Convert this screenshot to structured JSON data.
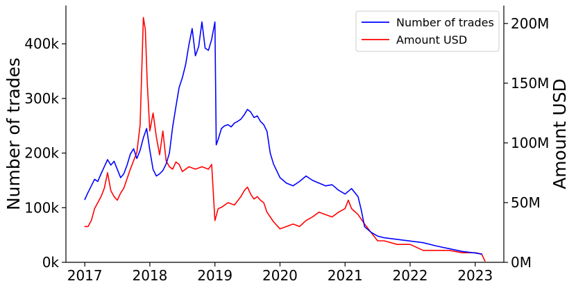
{
  "chart_data": {
    "type": "line",
    "ylabel_left": "Number of trades",
    "ylabel_right": "Amount USD",
    "xlim": [
      2016.71,
      2023.44
    ],
    "ylim_left": [
      0,
      470000
    ],
    "ylim_right": [
      0,
      215000000
    ],
    "x_ticks": [
      2017,
      2018,
      2019,
      2020,
      2021,
      2022,
      2023
    ],
    "x_tick_labels": [
      "2017",
      "2018",
      "2019",
      "2020",
      "2021",
      "2022",
      "2023"
    ],
    "y_left_ticks": [
      0,
      100000,
      200000,
      300000,
      400000
    ],
    "y_left_tick_labels": [
      "0k",
      "100k",
      "200k",
      "300k",
      "400k"
    ],
    "y_right_ticks": [
      0,
      50000000,
      100000000,
      150000000,
      200000000
    ],
    "y_right_tick_labels": [
      "0M",
      "50M",
      "100M",
      "150M",
      "200M"
    ],
    "legend_position": "top-right",
    "grid": false,
    "series": [
      {
        "name": "Number of trades",
        "axis": "left",
        "color": "#0000ff",
        "x": [
          2017.0,
          2017.05,
          2017.1,
          2017.15,
          2017.2,
          2017.25,
          2017.3,
          2017.35,
          2017.4,
          2017.45,
          2017.5,
          2017.55,
          2017.6,
          2017.65,
          2017.7,
          2017.75,
          2017.8,
          2017.85,
          2017.9,
          2017.95,
          2018.0,
          2018.05,
          2018.1,
          2018.15,
          2018.2,
          2018.25,
          2018.3,
          2018.35,
          2018.4,
          2018.45,
          2018.5,
          2018.55,
          2018.6,
          2018.65,
          2018.7,
          2018.75,
          2018.8,
          2018.85,
          2018.9,
          2018.95,
          2019.0,
          2019.02,
          2019.05,
          2019.1,
          2019.15,
          2019.2,
          2019.25,
          2019.3,
          2019.35,
          2019.4,
          2019.45,
          2019.5,
          2019.55,
          2019.6,
          2019.65,
          2019.7,
          2019.75,
          2019.8,
          2019.85,
          2019.9,
          2020.0,
          2020.1,
          2020.2,
          2020.3,
          2020.4,
          2020.5,
          2020.6,
          2020.7,
          2020.8,
          2020.9,
          2021.0,
          2021.1,
          2021.2,
          2021.25,
          2021.3,
          2021.4,
          2021.5,
          2021.6,
          2021.8,
          2022.0,
          2022.2,
          2022.4,
          2022.6,
          2022.8,
          2023.0,
          2023.1
        ],
        "values": [
          115000,
          128000,
          140000,
          152000,
          148000,
          162000,
          175000,
          188000,
          178000,
          185000,
          170000,
          155000,
          162000,
          178000,
          198000,
          208000,
          190000,
          205000,
          228000,
          245000,
          205000,
          170000,
          158000,
          162000,
          168000,
          180000,
          200000,
          248000,
          285000,
          320000,
          338000,
          362000,
          398000,
          428000,
          378000,
          395000,
          440000,
          392000,
          388000,
          408000,
          440000,
          215000,
          225000,
          245000,
          250000,
          252000,
          248000,
          255000,
          258000,
          262000,
          270000,
          280000,
          275000,
          265000,
          268000,
          258000,
          252000,
          240000,
          200000,
          180000,
          155000,
          145000,
          140000,
          148000,
          158000,
          150000,
          145000,
          140000,
          142000,
          132000,
          125000,
          135000,
          120000,
          95000,
          65000,
          55000,
          48000,
          45000,
          42000,
          39000,
          36000,
          30000,
          25000,
          20000,
          17000,
          15000
        ]
      },
      {
        "name": "Amount USD",
        "axis": "right",
        "color": "#ff0000",
        "x": [
          2017.0,
          2017.05,
          2017.1,
          2017.15,
          2017.2,
          2017.25,
          2017.3,
          2017.35,
          2017.4,
          2017.45,
          2017.5,
          2017.55,
          2017.6,
          2017.65,
          2017.7,
          2017.75,
          2017.8,
          2017.85,
          2017.9,
          2017.93,
          2017.96,
          2018.0,
          2018.05,
          2018.1,
          2018.15,
          2018.2,
          2018.25,
          2018.3,
          2018.35,
          2018.4,
          2018.45,
          2018.5,
          2018.6,
          2018.7,
          2018.8,
          2018.9,
          2018.95,
          2019.0,
          2019.05,
          2019.1,
          2019.2,
          2019.3,
          2019.4,
          2019.45,
          2019.5,
          2019.55,
          2019.6,
          2019.65,
          2019.7,
          2019.75,
          2019.8,
          2019.9,
          2020.0,
          2020.1,
          2020.2,
          2020.3,
          2020.4,
          2020.5,
          2020.6,
          2020.7,
          2020.8,
          2020.9,
          2021.0,
          2021.05,
          2021.1,
          2021.2,
          2021.3,
          2021.4,
          2021.5,
          2021.6,
          2021.8,
          2022.0,
          2022.2,
          2022.4,
          2022.6,
          2022.8,
          2023.0,
          2023.1,
          2023.15
        ],
        "values": [
          30000000,
          30000000,
          35000000,
          45000000,
          50000000,
          55000000,
          62000000,
          75000000,
          60000000,
          55000000,
          52000000,
          58000000,
          62000000,
          70000000,
          78000000,
          85000000,
          92000000,
          115000000,
          205000000,
          195000000,
          150000000,
          110000000,
          125000000,
          105000000,
          90000000,
          110000000,
          85000000,
          80000000,
          78000000,
          84000000,
          82000000,
          76000000,
          80000000,
          78000000,
          80000000,
          78000000,
          82000000,
          35000000,
          45000000,
          46000000,
          50000000,
          48000000,
          55000000,
          60000000,
          63000000,
          57000000,
          53000000,
          55000000,
          52000000,
          50000000,
          42000000,
          34000000,
          28000000,
          30000000,
          32000000,
          30000000,
          35000000,
          38000000,
          42000000,
          40000000,
          38000000,
          42000000,
          45000000,
          52000000,
          45000000,
          40000000,
          32000000,
          25000000,
          18000000,
          18000000,
          15000000,
          15000000,
          10000000,
          10000000,
          10000000,
          8000000,
          8000000,
          7000000,
          1000000
        ]
      }
    ]
  }
}
